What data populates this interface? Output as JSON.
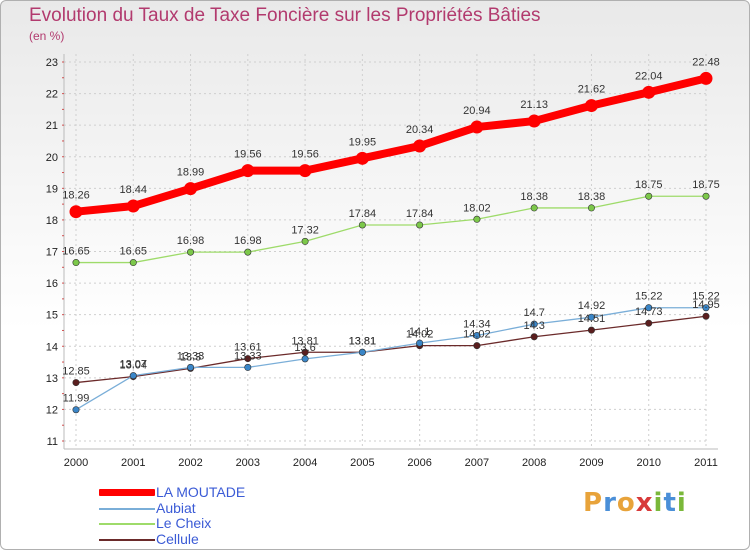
{
  "title": "Evolution du Taux de Taxe Foncière sur les Propriétés Bâties",
  "subtitle": "(en %)",
  "logo": {
    "text": "Proxiti",
    "colors": [
      "#e8a33a",
      "#4a8fd8",
      "#e8a33a",
      "#d83a3a",
      "#7ab83a",
      "#4a8fd8",
      "#7ab83a"
    ]
  },
  "legend": [
    {
      "label": "LA MOUTADE",
      "color": "#ff0000",
      "thick": true
    },
    {
      "label": "Aubiat",
      "color": "#7aaed8",
      "thick": false
    },
    {
      "label": "Le Cheix",
      "color": "#9edb6a",
      "thick": false
    },
    {
      "label": "Cellule",
      "color": "#6b2a2a",
      "thick": false
    }
  ],
  "chart_data": {
    "type": "line",
    "title": "Evolution du Taux de Taxe Foncière sur les Propriétés Bâties",
    "ylabel": "(en %)",
    "xlabel": "",
    "ylim": [
      11,
      23
    ],
    "yticks": [
      11,
      12,
      13,
      14,
      15,
      16,
      17,
      18,
      19,
      20,
      21,
      22,
      23
    ],
    "categories": [
      "2000",
      "2001",
      "2002",
      "2003",
      "2004",
      "2005",
      "2006",
      "2007",
      "2008",
      "2009",
      "2010",
      "2011"
    ],
    "grid": true,
    "series": [
      {
        "name": "Cellule",
        "color": "#6b2a2a",
        "marker": "#5a1e1e",
        "width": 1.3,
        "values": [
          12.85,
          13.04,
          13.3,
          13.61,
          13.81,
          13.81,
          14.02,
          14.02,
          14.3,
          14.51,
          14.73,
          14.95
        ],
        "labels": [
          "12.85",
          "13.04",
          "13.3",
          "13.61",
          "13.81",
          "13.81",
          "14.02",
          "14.02",
          "14.3",
          "14.51",
          "14.73",
          "14.95"
        ]
      },
      {
        "name": "Aubiat",
        "color": "#7aaed8",
        "marker": "#3a86c8",
        "width": 1.3,
        "values": [
          11.99,
          13.07,
          13.33,
          13.33,
          13.6,
          13.81,
          14.1,
          14.34,
          14.7,
          14.92,
          15.22,
          15.22
        ],
        "labels": [
          "11.99",
          "13.07",
          "13.33",
          "13.33",
          "13.6",
          "13.81",
          "14.1",
          "14.34",
          "14.7",
          "14.92",
          "15.22",
          "15.22"
        ]
      },
      {
        "name": "Le Cheix",
        "color": "#9edb6a",
        "marker": "#7cc84a",
        "width": 1.3,
        "values": [
          16.65,
          16.65,
          16.98,
          16.98,
          17.32,
          17.84,
          17.84,
          18.02,
          18.38,
          18.38,
          18.75,
          18.75
        ],
        "labels": [
          "16.65",
          "16.65",
          "16.98",
          "16.98",
          "17.32",
          "17.84",
          "17.84",
          "18.02",
          "18.38",
          "18.38",
          "18.75",
          "18.75"
        ]
      },
      {
        "name": "LA MOUTADE",
        "color": "#ff0000",
        "marker": "#ff0000",
        "width": 8,
        "values": [
          18.26,
          18.44,
          18.99,
          19.56,
          19.56,
          19.95,
          20.34,
          20.94,
          21.13,
          21.62,
          22.04,
          22.48
        ],
        "labels": [
          "18.26",
          "18.44",
          "18.99",
          "19.56",
          "19.56",
          "19.95",
          "20.34",
          "20.94",
          "21.13",
          "21.62",
          "22.04",
          "22.48"
        ]
      }
    ]
  }
}
